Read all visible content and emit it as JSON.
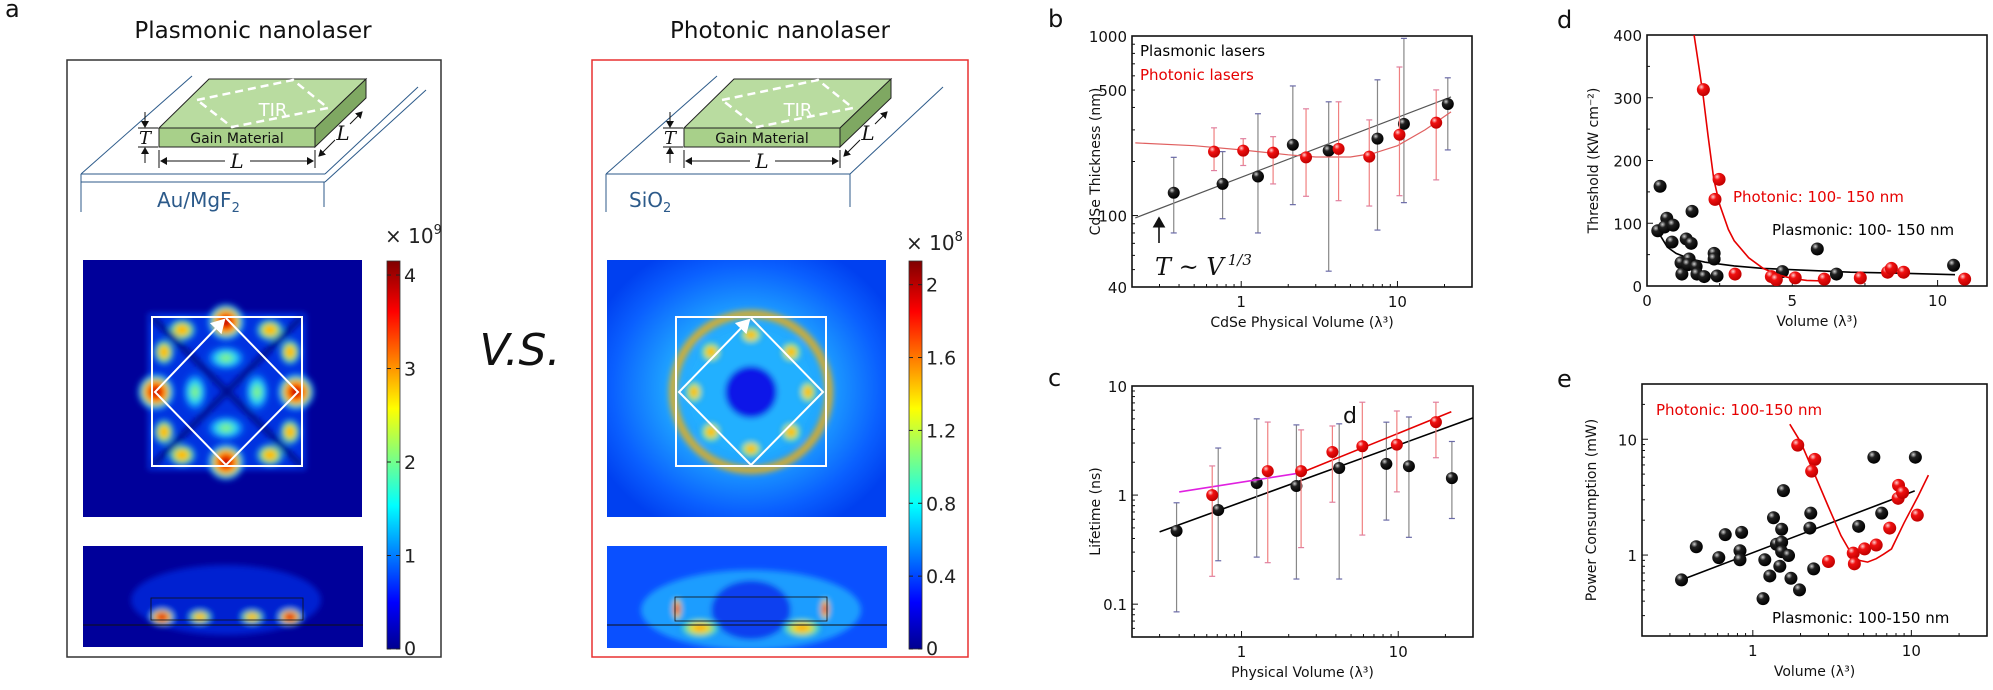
{
  "panel_a": {
    "label": "a",
    "vs": "V.S.",
    "plasmonic": {
      "title": "Plasmonic nanolaser",
      "gain": "Gain Material",
      "tir": "TIR",
      "t": "T",
      "l_front": "L",
      "l_side": "L",
      "substrate": "Au/MgF",
      "substrate_sub": "2",
      "scale": "× 10",
      "scale_exp": "9",
      "colorbar_range": [
        0,
        4.15
      ],
      "colorbar_ticks": [
        0,
        1,
        2,
        3,
        4
      ],
      "colorbar_tick_labels": [
        "0",
        "1",
        "2",
        "3",
        "4"
      ]
    },
    "photonic": {
      "title": "Photonic nanolaser",
      "gain": "Gain Material",
      "tir": "TIR",
      "t": "T",
      "l_front": "L",
      "l_side": "L",
      "substrate": "SiO",
      "substrate_sub": "2",
      "scale": "× 10",
      "scale_exp": "8",
      "colorbar_range": [
        0,
        2.13
      ],
      "colorbar_ticks": [
        0,
        0.4,
        0.8,
        1.2,
        1.6,
        2
      ],
      "colorbar_tick_labels": [
        "0",
        "0.4",
        "0.8",
        "1.2",
        "1.6",
        "2"
      ]
    }
  },
  "colors": {
    "plasmonic": "#000000",
    "photonic": "#e60000",
    "photonic_box": "#e83030",
    "substrate_text": "#2c5a8a",
    "gain_top": "#b9dca0",
    "gain_side": "#93bd74",
    "magenta_fit": "#e020e0"
  },
  "chart_data": [
    {
      "label": "b",
      "type": "scatter",
      "xscale": "log",
      "yscale": "log",
      "xlim": [
        0.2,
        30
      ],
      "ylim": [
        40,
        1000
      ],
      "xticks": [
        1,
        10
      ],
      "xtick_labels": [
        "1",
        "10"
      ],
      "yticks": [
        40,
        100,
        500,
        1000
      ],
      "ytick_labels": [
        "40",
        "100",
        "500",
        "1000"
      ],
      "xlabel": "CdSe Physical Volume (λ³)",
      "ylabel": "CdSe Thickness (nm)",
      "legend_placement": "top-left",
      "series": [
        {
          "name": "Plasmonic lasers",
          "color": "#000000",
          "points": [
            [
              0.37,
              134,
              80,
              211
            ],
            [
              0.76,
              150,
              96,
              227
            ],
            [
              1.28,
              165,
              80,
              369
            ],
            [
              2.14,
              248,
              115,
              527
            ],
            [
              3.63,
              230,
              49,
              430
            ],
            [
              7.45,
              268,
              83,
              570
            ],
            [
              11.0,
              324,
              118,
              970
            ],
            [
              21,
              418,
              232,
              585
            ]
          ],
          "fit": [
            [
              0.21,
              97
            ],
            [
              22,
              458
            ]
          ]
        },
        {
          "name": "Photonic lasers",
          "color": "#e60000",
          "points": [
            [
              0.67,
              227,
              178,
              308
            ],
            [
              1.03,
              230,
              190,
              268
            ],
            [
              1.6,
              224,
              150,
              275
            ],
            [
              2.6,
              211,
              128,
              393
            ],
            [
              4.2,
              235,
              121,
              430
            ],
            [
              6.6,
              213,
              113,
              341
            ],
            [
              10.3,
              282,
              129,
              672
            ],
            [
              17.7,
              329,
              158,
              501
            ]
          ],
          "fit": [
            [
              0.21,
              254
            ],
            [
              0.5,
              245
            ],
            [
              1,
              232
            ],
            [
              2,
              218
            ],
            [
              3,
              212
            ],
            [
              5,
              212
            ],
            [
              7,
              222
            ],
            [
              10,
              245
            ],
            [
              15,
              300
            ],
            [
              22,
              378
            ]
          ]
        }
      ],
      "annotations": [
        {
          "text": "T ~ V",
          "sup": "1/3"
        }
      ]
    },
    {
      "label": "c",
      "type": "scatter",
      "xscale": "log",
      "yscale": "log",
      "xlim": [
        0.2,
        30
      ],
      "ylim": [
        0.05,
        10
      ],
      "xticks": [
        1,
        10
      ],
      "xtick_labels": [
        "1",
        "10"
      ],
      "yticks": [
        0.1,
        1,
        10
      ],
      "ytick_labels": [
        "0.1",
        "1",
        "10"
      ],
      "xlabel": "Physical Volume (λ³)",
      "ylabel": "Lifetime (ns)",
      "series": [
        {
          "color": "#000000",
          "points": [
            [
              0.385,
              0.47,
              0.085,
              0.85
            ],
            [
              0.71,
              0.73,
              0.25,
              2.7
            ],
            [
              1.25,
              1.29,
              0.27,
              5.0
            ],
            [
              2.24,
              1.21,
              0.17,
              4.4
            ],
            [
              4.2,
              1.77,
              0.17,
              4.5
            ],
            [
              8.4,
              1.93,
              0.59,
              4.66
            ],
            [
              11.7,
              1.84,
              0.41,
              5.2
            ],
            [
              22,
              1.43,
              0.61,
              3.1
            ]
          ],
          "fit": [
            [
              0.3,
              0.46
            ],
            [
              30,
              5.1
            ]
          ]
        },
        {
          "color": "#e60000",
          "points": [
            [
              0.65,
              1.0,
              0.18,
              1.85
            ],
            [
              1.47,
              1.66,
              0.24,
              4.67
            ],
            [
              2.4,
              1.66,
              0.33,
              3.96
            ],
            [
              3.8,
              2.48,
              0.86,
              4.3
            ],
            [
              5.9,
              2.8,
              0.43,
              7.1
            ],
            [
              9.8,
              2.9,
              1.07,
              5.9
            ],
            [
              17.4,
              4.66,
              2.2,
              7.1
            ]
          ],
          "fit": [
            [
              2.4,
              1.6
            ],
            [
              21.8,
              5.8
            ]
          ],
          "fit2_color": "#e020e0",
          "fit2": [
            [
              0.4,
              1.07
            ],
            [
              2.4,
              1.6
            ]
          ]
        }
      ],
      "annotations": [
        {
          "text": "d"
        }
      ]
    },
    {
      "label": "d",
      "type": "scatter",
      "xscale": "linear",
      "yscale": "linear",
      "xlim": [
        0,
        11.7
      ],
      "ylim": [
        0,
        400
      ],
      "xticks": [
        0,
        5,
        10
      ],
      "xtick_labels": [
        "0",
        "5",
        "10"
      ],
      "yticks": [
        0,
        100,
        200,
        300,
        400
      ],
      "ytick_labels": [
        "0",
        "100",
        "200",
        "300",
        "400"
      ],
      "xlabel": "Volume (λ³)",
      "ylabel": "Threshold (KW cm⁻²)",
      "series": [
        {
          "name": "Plasmonic: 100- 150 nm",
          "color": "#000000",
          "points": [
            [
              0.45,
              159
            ],
            [
              0.37,
              88
            ],
            [
              0.68,
              108
            ],
            [
              0.6,
              94
            ],
            [
              0.9,
              97
            ],
            [
              0.86,
              70
            ],
            [
              1.55,
              119
            ],
            [
              1.35,
              75
            ],
            [
              1.52,
              68
            ],
            [
              1.17,
              37
            ],
            [
              1.2,
              19
            ],
            [
              1.45,
              43
            ],
            [
              1.41,
              34
            ],
            [
              1.69,
              31
            ],
            [
              1.72,
              19
            ],
            [
              1.97,
              15
            ],
            [
              2.31,
              52
            ],
            [
              2.31,
              43
            ],
            [
              2.41,
              16
            ],
            [
              4.66,
              23
            ],
            [
              5.86,
              59
            ],
            [
              6.52,
              19
            ],
            [
              10.55,
              33
            ]
          ],
          "fit": [
            [
              0.4,
              85
            ],
            [
              0.7,
              62
            ],
            [
              1,
              52
            ],
            [
              1.5,
              43
            ],
            [
              2,
              38
            ],
            [
              3,
              32
            ],
            [
              4,
              28
            ],
            [
              5,
              26
            ],
            [
              7,
              22
            ],
            [
              9,
              20
            ],
            [
              10.6,
              18
            ]
          ]
        },
        {
          "name": "Photonic: 100- 150 nm",
          "color": "#e60000",
          "points": [
            [
              1.94,
              313
            ],
            [
              2.48,
              170
            ],
            [
              2.34,
              138
            ],
            [
              3.03,
              19
            ],
            [
              4.28,
              15
            ],
            [
              4.45,
              10
            ],
            [
              5.1,
              13
            ],
            [
              6.1,
              11
            ],
            [
              7.34,
              13
            ],
            [
              8.28,
              22
            ],
            [
              8.41,
              28
            ],
            [
              8.83,
              22
            ],
            [
              10.93,
              11
            ]
          ],
          "fit": [
            [
              1.62,
              400
            ],
            [
              1.8,
              345
            ],
            [
              1.94,
              300
            ],
            [
              2.1,
              240
            ],
            [
              2.3,
              170
            ],
            [
              2.5,
              130
            ],
            [
              2.8,
              90
            ],
            [
              3,
              72
            ],
            [
              3.5,
              45
            ],
            [
              4,
              28
            ],
            [
              4.5,
              18
            ],
            [
              5,
              12
            ],
            [
              5.5,
              9
            ],
            [
              6.1,
              8
            ]
          ]
        }
      ]
    },
    {
      "label": "e",
      "type": "scatter",
      "xscale": "log",
      "yscale": "log",
      "xlim": [
        0.2,
        30
      ],
      "ylim": [
        0.2,
        30
      ],
      "xticks": [
        1,
        10
      ],
      "xtick_labels": [
        "1",
        "10"
      ],
      "yticks": [
        1,
        10
      ],
      "ytick_labels": [
        "1",
        "10"
      ],
      "xlabel": "Volume (λ³)",
      "ylabel": "Power Consumption (mW)",
      "series": [
        {
          "name": "Plasmonic: 100-150 nm",
          "color": "#000000",
          "points": [
            [
              0.355,
              0.61
            ],
            [
              0.44,
              1.18
            ],
            [
              0.61,
              0.95
            ],
            [
              0.67,
              1.5
            ],
            [
              0.83,
              1.09
            ],
            [
              0.83,
              0.91
            ],
            [
              0.85,
              1.57
            ],
            [
              1.16,
              0.42
            ],
            [
              1.19,
              0.91
            ],
            [
              1.28,
              0.66
            ],
            [
              1.35,
              2.1
            ],
            [
              1.41,
              1.24
            ],
            [
              1.48,
              0.8
            ],
            [
              1.52,
              1.67
            ],
            [
              1.52,
              1.29
            ],
            [
              1.52,
              1.07
            ],
            [
              1.56,
              3.6
            ],
            [
              1.68,
              0.99
            ],
            [
              1.74,
              0.63
            ],
            [
              1.97,
              0.5
            ],
            [
              2.32,
              2.3
            ],
            [
              2.29,
              1.71
            ],
            [
              2.42,
              0.76
            ],
            [
              4.65,
              1.77
            ],
            [
              5.8,
              7.0
            ],
            [
              6.5,
              2.3
            ],
            [
              10.6,
              7.0
            ]
          ],
          "fit": [
            [
              0.355,
              0.61
            ],
            [
              10.5,
              3.58
            ]
          ]
        },
        {
          "name": "Photonic: 100-150 nm",
          "color": "#e60000",
          "points": [
            [
              1.92,
              8.9
            ],
            [
              2.46,
              6.7
            ],
            [
              2.35,
              5.3
            ],
            [
              3.0,
              0.88
            ],
            [
              4.3,
              1.04
            ],
            [
              4.37,
              0.84
            ],
            [
              5.07,
              1.13
            ],
            [
              6.0,
              1.22
            ],
            [
              7.3,
              1.71
            ],
            [
              8.25,
              3.09
            ],
            [
              8.3,
              4.0
            ],
            [
              8.8,
              3.47
            ],
            [
              10.9,
              2.21
            ]
          ],
          "fit": [
            [
              1.71,
              13.5
            ],
            [
              2.0,
              9.5
            ],
            [
              2.45,
              5.0
            ],
            [
              3,
              2.6
            ],
            [
              3.6,
              1.47
            ],
            [
              4.2,
              1.02
            ],
            [
              4.7,
              0.9
            ],
            [
              5.3,
              0.87
            ],
            [
              6.0,
              0.93
            ],
            [
              6.7,
              1.02
            ],
            [
              7.5,
              1.13
            ],
            [
              9,
              1.9
            ],
            [
              11,
              3.2
            ],
            [
              12.8,
              4.9
            ]
          ]
        }
      ]
    }
  ]
}
